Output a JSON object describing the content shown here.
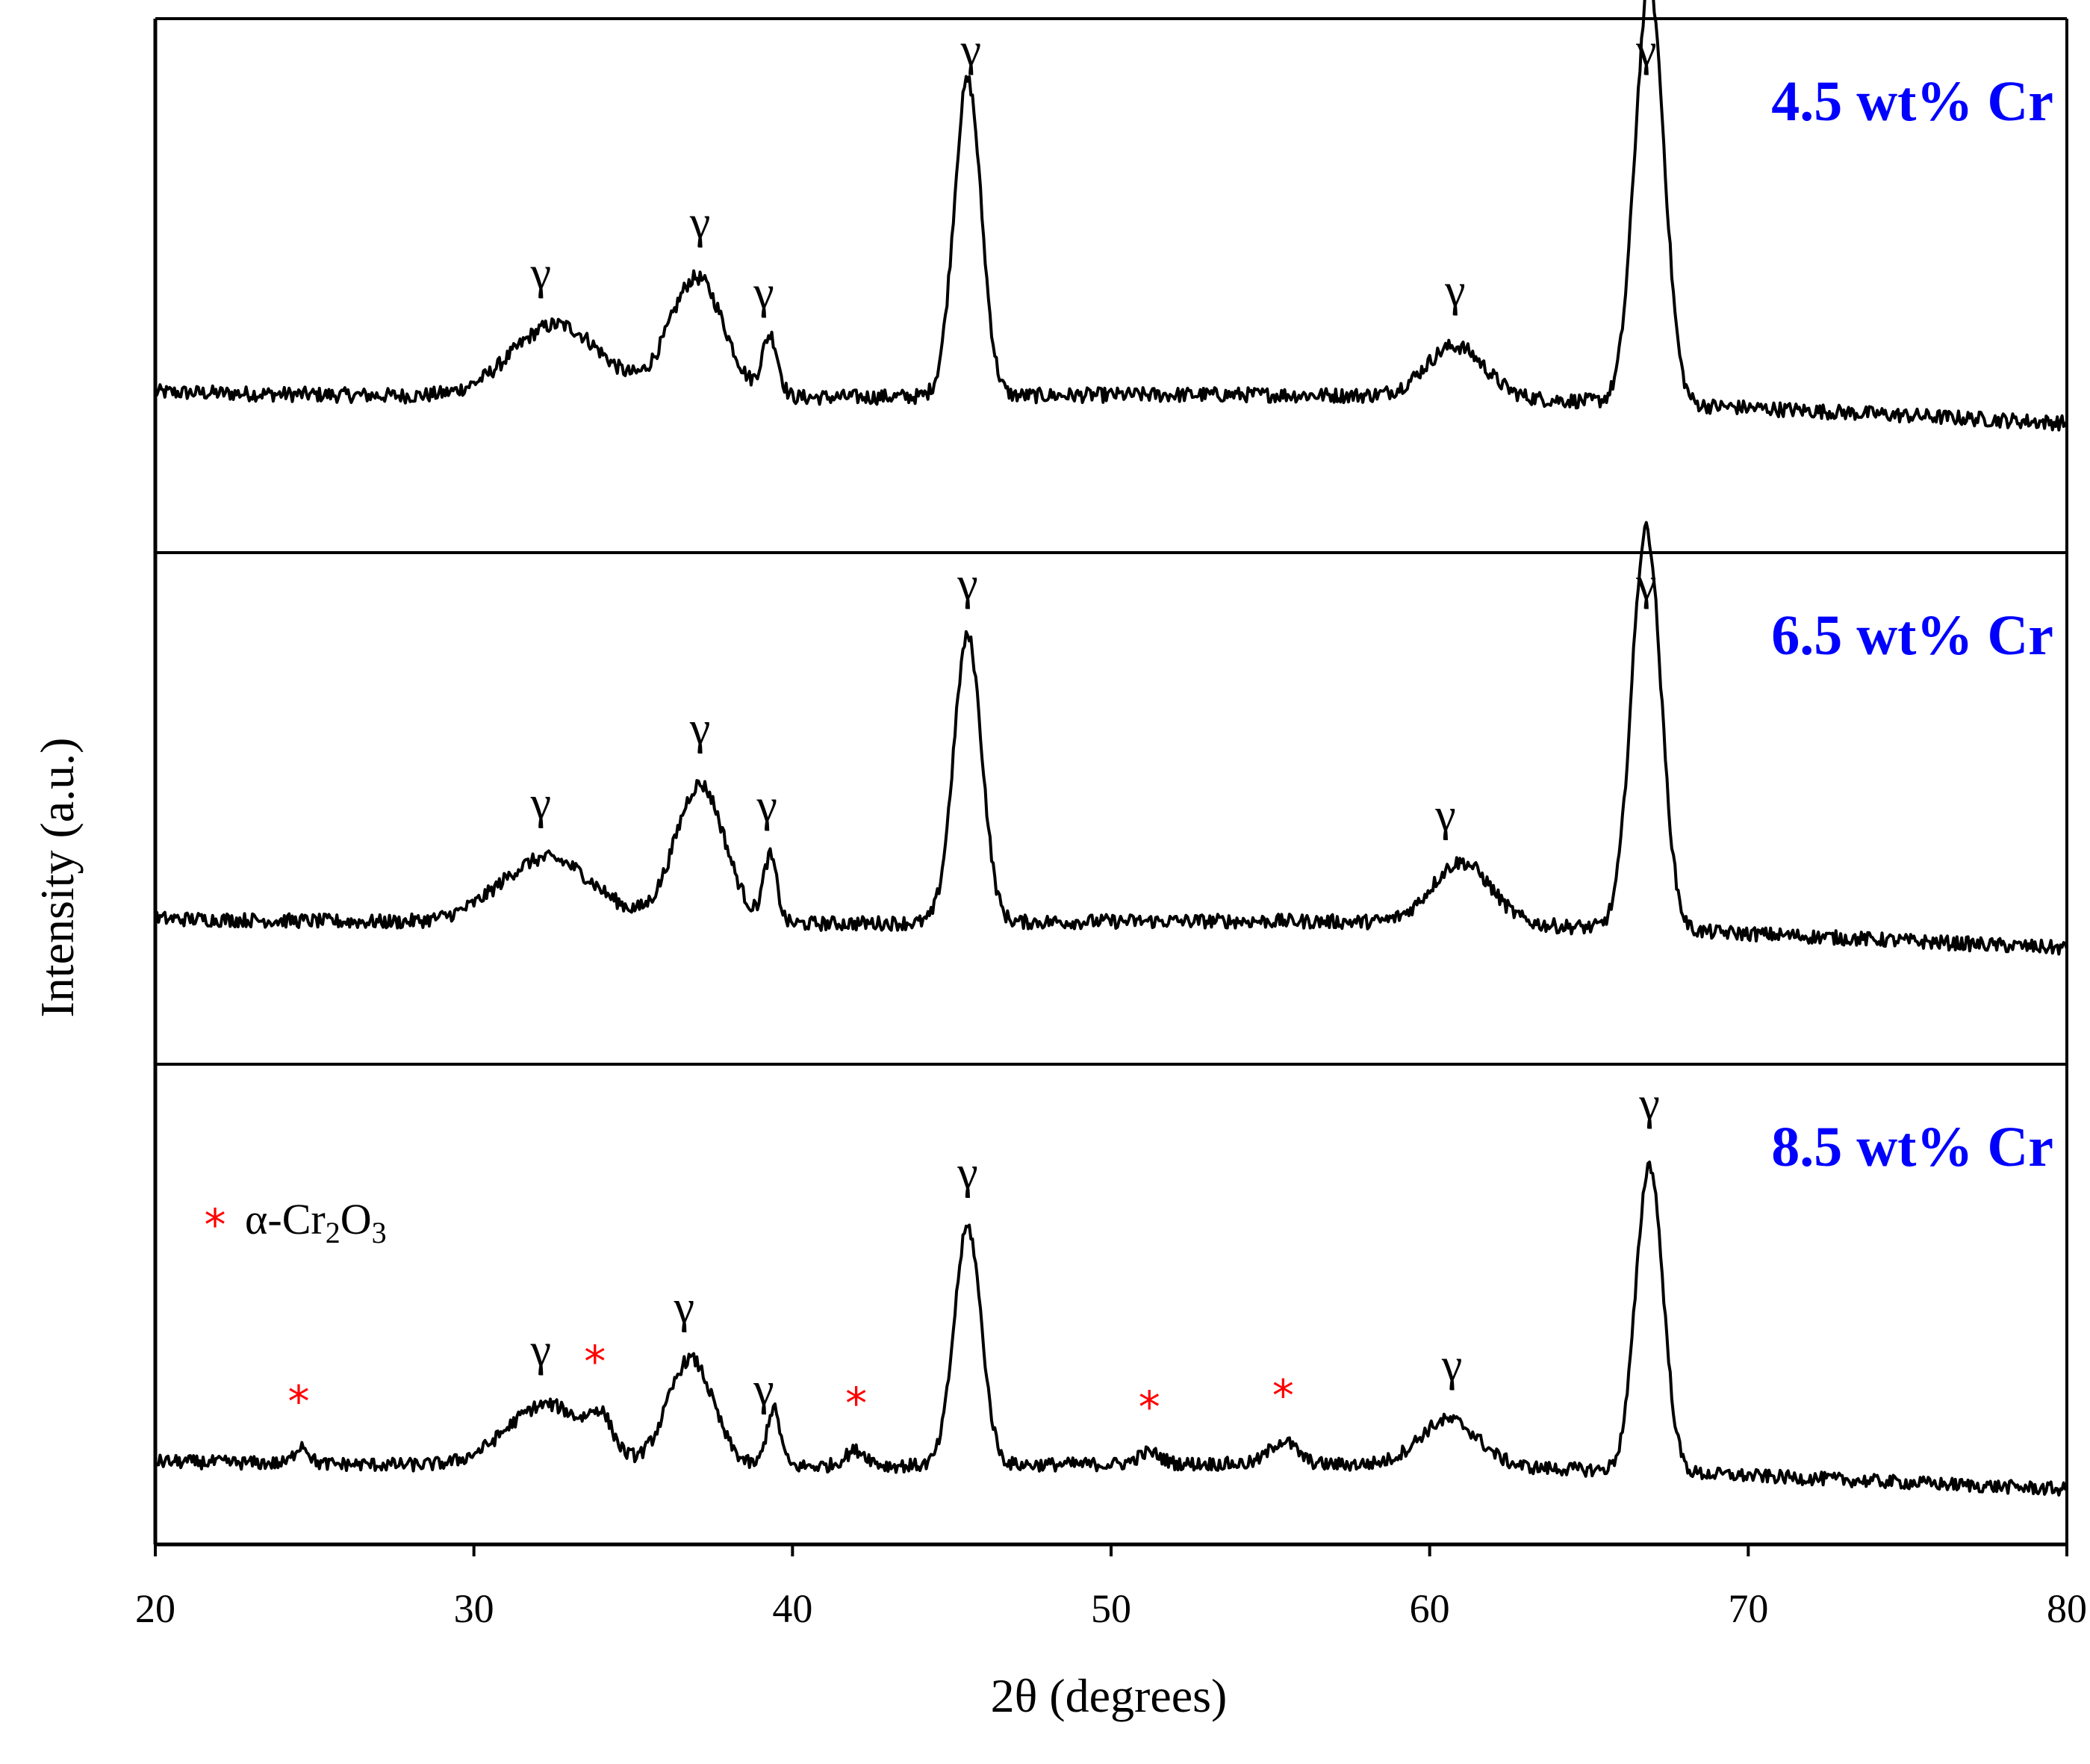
{
  "chart_data": {
    "type": "line",
    "xlabel": "2θ (degrees)",
    "ylabel": "Intensity (a.u.)",
    "xlim": [
      20,
      80
    ],
    "xticks": [
      "20",
      "30",
      "40",
      "50",
      "60",
      "70",
      "80"
    ],
    "grid": false,
    "colors": {
      "line": "#000000",
      "panel_label": "#0000ff",
      "star": "#ff0000"
    },
    "legend": {
      "symbol": "*",
      "phase_prefix": "α-Cr",
      "sub1": "2",
      "mid": "O",
      "sub2": "3"
    },
    "panels": [
      {
        "label": "4.5 wt% Cr",
        "baseline": 0.3,
        "peaks": [
          {
            "pos": 32.6,
            "amp": 0.17,
            "w": 2.0
          },
          {
            "pos": 37.0,
            "amp": 0.28,
            "w": 1.2
          },
          {
            "pos": 39.3,
            "amp": 0.14,
            "w": 0.35
          },
          {
            "pos": 45.5,
            "amp": 0.74,
            "w": 0.6
          },
          {
            "pos": 60.8,
            "amp": 0.12,
            "w": 1.3
          },
          {
            "pos": 66.9,
            "amp": 0.98,
            "w": 0.65
          }
        ],
        "gamma_at": [
          32.1,
          37.1,
          39.1,
          45.6,
          60.8,
          66.8
        ],
        "stars_at": []
      },
      {
        "label": "6.5 wt% Cr",
        "baseline": 0.28,
        "peaks": [
          {
            "pos": 32.3,
            "amp": 0.16,
            "w": 2.1
          },
          {
            "pos": 37.1,
            "amp": 0.34,
            "w": 1.1
          },
          {
            "pos": 39.3,
            "amp": 0.16,
            "w": 0.3
          },
          {
            "pos": 45.5,
            "amp": 0.7,
            "w": 0.62
          },
          {
            "pos": 61.0,
            "amp": 0.15,
            "w": 1.3
          },
          {
            "pos": 66.8,
            "amp": 0.98,
            "w": 0.65
          }
        ],
        "gamma_at": [
          32.1,
          37.1,
          39.2,
          45.5,
          60.5,
          66.8
        ],
        "stars_at": []
      },
      {
        "label": "8.5 wt% Cr",
        "baseline": 0.14,
        "peaks": [
          {
            "pos": 24.6,
            "amp": 0.05,
            "w": 0.3
          },
          {
            "pos": 32.3,
            "amp": 0.16,
            "w": 1.8
          },
          {
            "pos": 34.0,
            "amp": 0.08,
            "w": 0.5
          },
          {
            "pos": 36.8,
            "amp": 0.28,
            "w": 1.0
          },
          {
            "pos": 39.4,
            "amp": 0.15,
            "w": 0.3
          },
          {
            "pos": 42.0,
            "amp": 0.04,
            "w": 0.5
          },
          {
            "pos": 45.5,
            "amp": 0.62,
            "w": 0.6
          },
          {
            "pos": 51.2,
            "amp": 0.03,
            "w": 0.5
          },
          {
            "pos": 55.4,
            "amp": 0.06,
            "w": 0.6
          },
          {
            "pos": 60.6,
            "amp": 0.12,
            "w": 1.3
          },
          {
            "pos": 66.9,
            "amp": 0.8,
            "w": 0.6
          }
        ],
        "gamma_at": [
          32.1,
          36.6,
          39.1,
          45.5,
          60.7,
          66.9
        ],
        "stars_at": [
          24.5,
          33.8,
          42.0,
          51.2,
          55.4
        ]
      }
    ]
  }
}
